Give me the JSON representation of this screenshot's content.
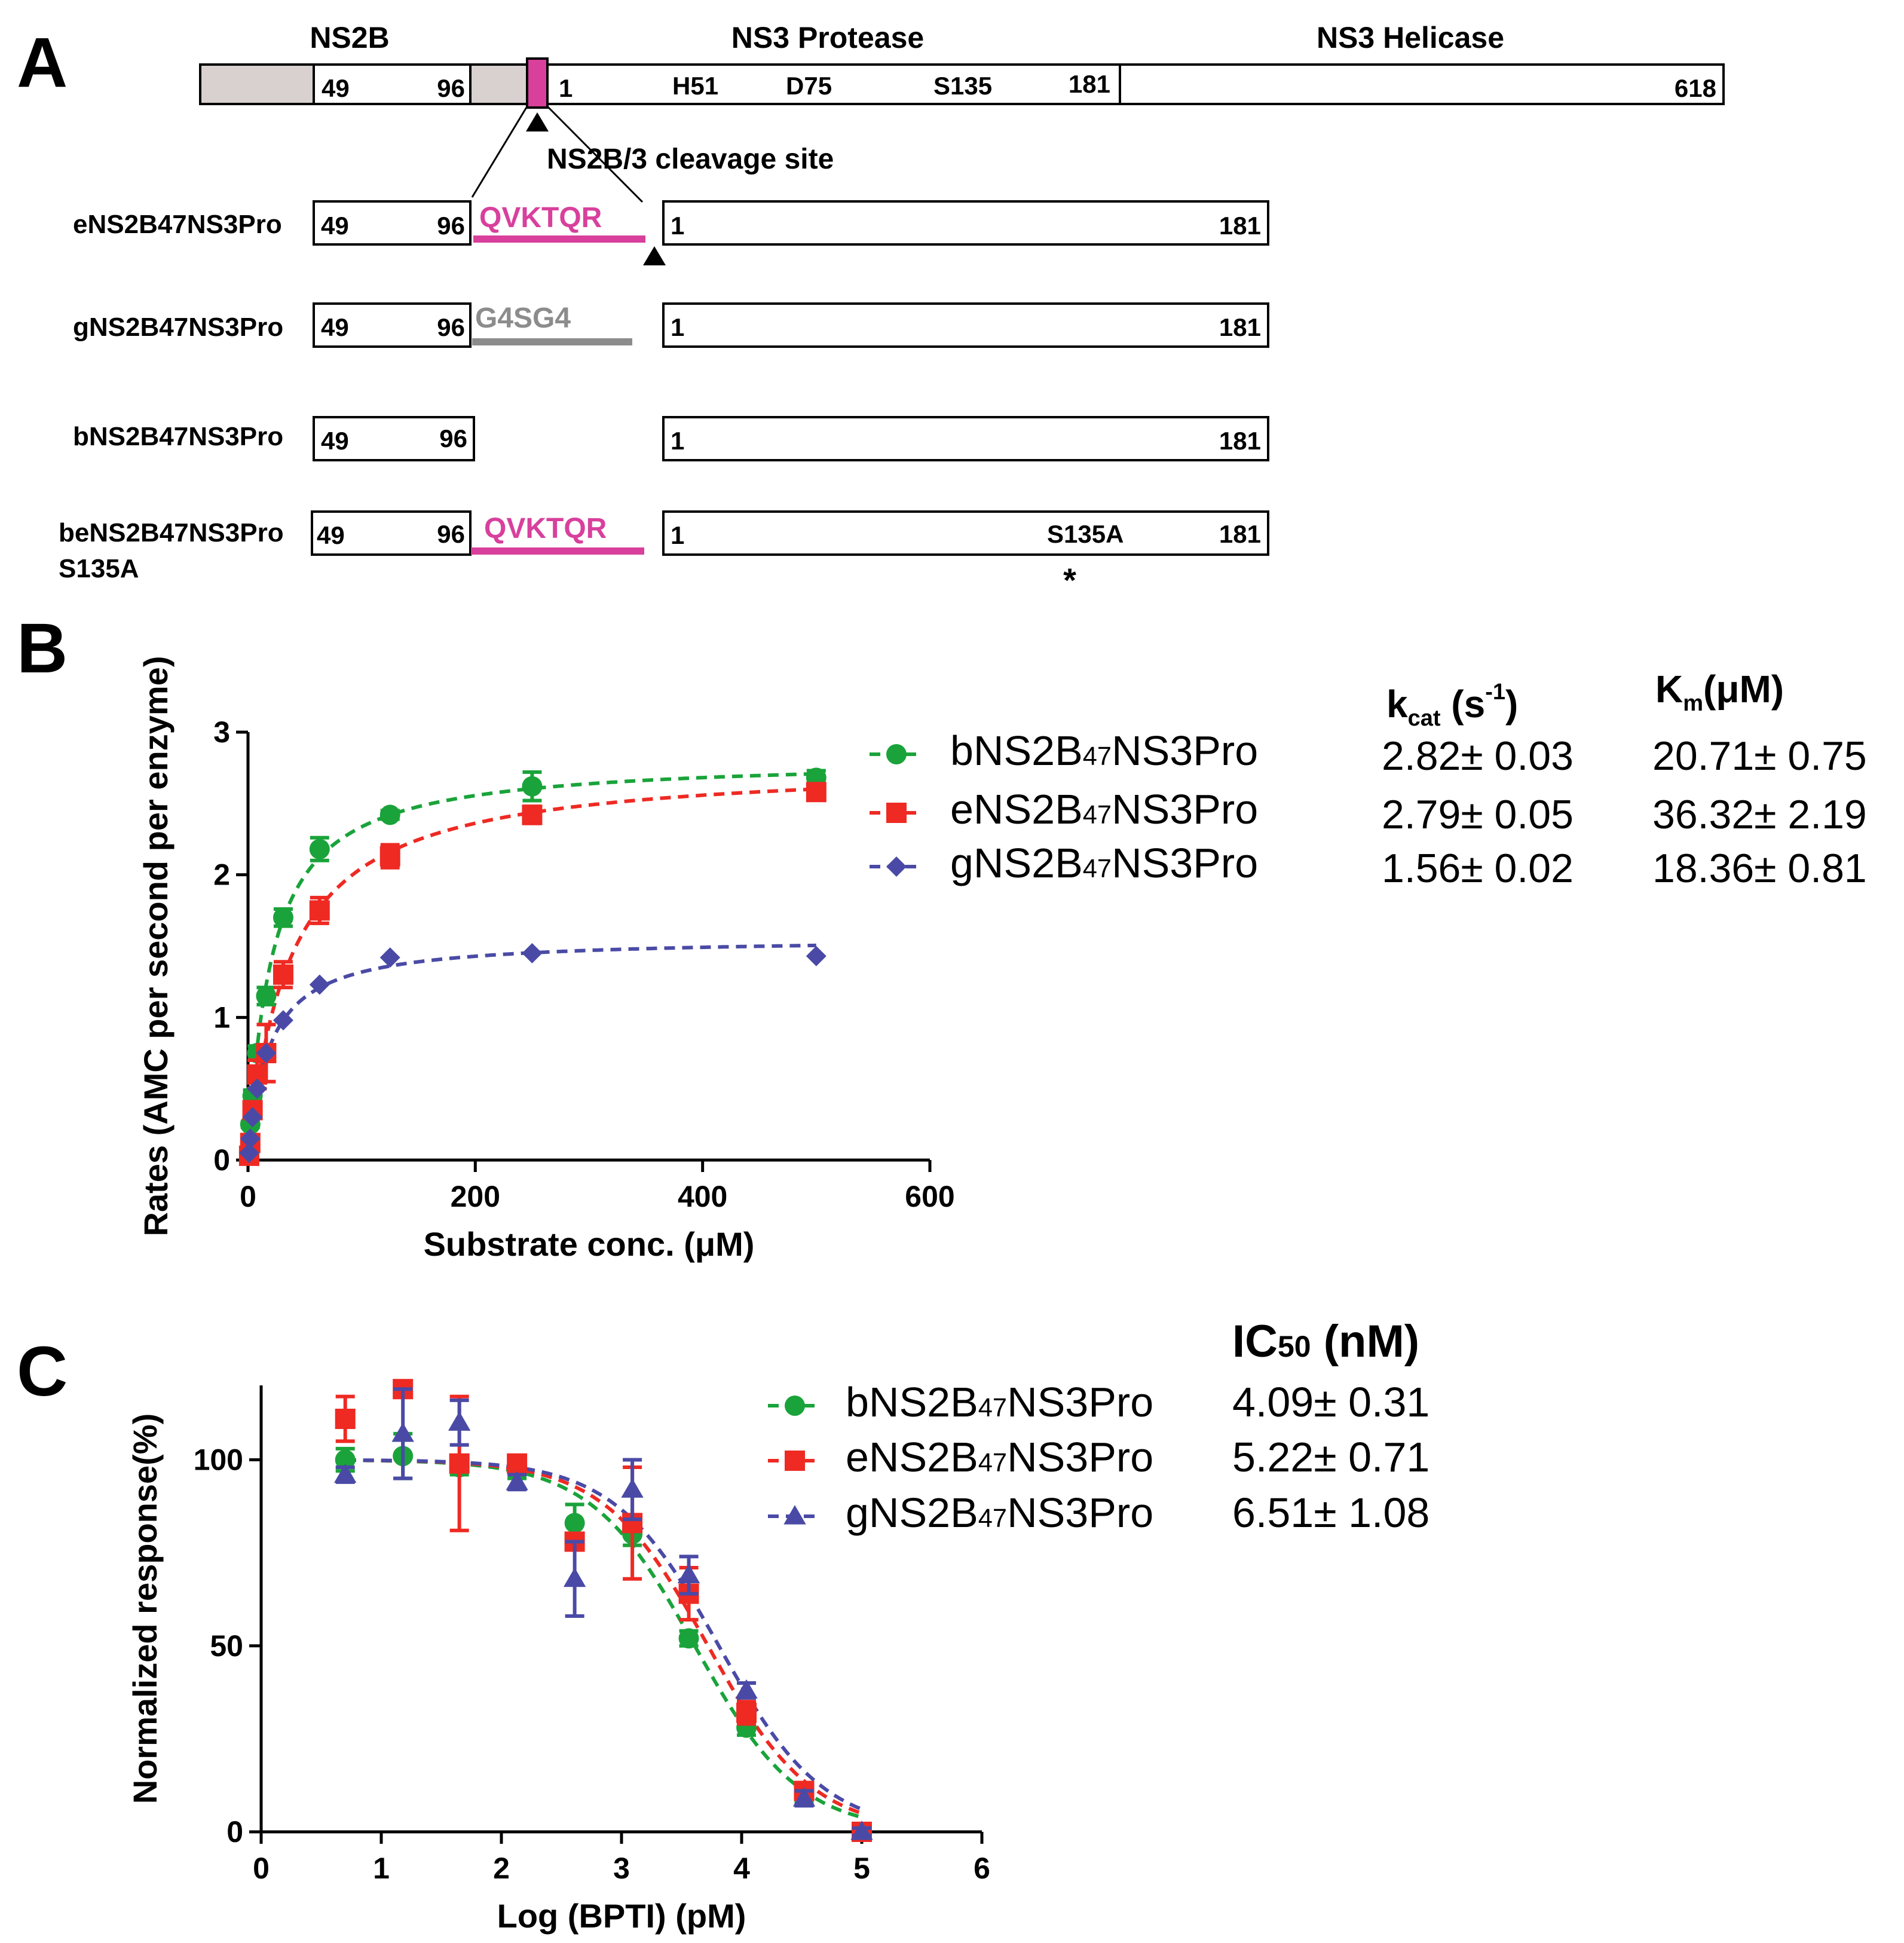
{
  "panel_letters": {
    "a": "A",
    "b": "B",
    "c": "C"
  },
  "colors": {
    "green": "#1aa33a",
    "red": "#ee2a23",
    "blue": "#4a4aa6",
    "magenta": "#d8409c",
    "grey": "#8c8c8c",
    "fill": "#d9d1cf",
    "black": "#000000"
  },
  "panel_a": {
    "headers": {
      "ns2b": "NS2B",
      "protease": "NS3 Protease",
      "helicase": "NS3 Helicase"
    },
    "top_bar": {
      "n49": "49",
      "n96": "96",
      "n1": "1",
      "h51": "H51",
      "d75": "D75",
      "s135": "S135",
      "n181": "181",
      "n618": "618"
    },
    "cleavage_label": "NS2B/3 cleavage site",
    "constructs": [
      {
        "name": "eNS2B47NS3Pro",
        "left_start": "49",
        "left_end": "96",
        "linker": "QVKTQR",
        "right_start": "1",
        "right_end": "181",
        "mutation": ""
      },
      {
        "name": "gNS2B47NS3Pro",
        "left_start": "49",
        "left_end": "96",
        "linker": "G4SG4",
        "right_start": "1",
        "right_end": "181",
        "mutation": ""
      },
      {
        "name": "bNS2B47NS3Pro",
        "left_start": "49",
        "left_end": "96",
        "linker": "",
        "right_start": "1",
        "right_end": "181",
        "mutation": ""
      },
      {
        "name": "beNS2B47NS3Pro",
        "name_line2": "S135A",
        "left_start": "49",
        "left_end": "96",
        "linker": "QVKTQR",
        "right_start": "1",
        "right_end": "181",
        "mutation": "S135A",
        "mutation_mark": "*"
      }
    ]
  },
  "chart_data": [
    {
      "panel": "B",
      "type": "scatter",
      "title": "",
      "xlabel": "Substrate conc. (μM)",
      "ylabel": "Rates (AMC per second per enzyme)",
      "xlim": [
        0,
        600
      ],
      "ylim": [
        0,
        3
      ],
      "xticks": [
        0,
        200,
        400,
        600
      ],
      "yticks": [
        0,
        1,
        2,
        3
      ],
      "legend_position": "right",
      "table_headers": {
        "kcat": "kcat (s-1)",
        "km": "Km (μM)"
      },
      "series": [
        {
          "name": "bNS2B47NS3Pro",
          "marker": "circle",
          "color": "#1aa33a",
          "x": [
            1,
            2,
            4,
            8,
            16,
            31,
            63,
            125,
            250,
            500
          ],
          "y": [
            0.05,
            0.25,
            0.45,
            0.75,
            1.15,
            1.7,
            2.18,
            2.42,
            2.62,
            2.68
          ],
          "err": [
            0.02,
            0.02,
            0.04,
            0.05,
            0.06,
            0.06,
            0.08,
            0.03,
            0.1,
            0.05
          ],
          "kcat": "2.82± 0.03",
          "km": "20.71± 0.75",
          "kcat_fit": 2.82,
          "km_fit": 20.71
        },
        {
          "name": "eNS2B47NS3Pro",
          "marker": "square",
          "color": "#ee2a23",
          "x": [
            1,
            2,
            4,
            8,
            16,
            31,
            63,
            125,
            250,
            500
          ],
          "y": [
            0.03,
            0.12,
            0.35,
            0.6,
            0.75,
            1.3,
            1.75,
            2.13,
            2.42,
            2.58
          ],
          "err": [
            0.02,
            0.03,
            0.05,
            0.1,
            0.2,
            0.09,
            0.09,
            0.08,
            0.06,
            0.05
          ],
          "kcat": "2.79± 0.05",
          "km": "36.32± 2.19",
          "kcat_fit": 2.79,
          "km_fit": 36.32
        },
        {
          "name": "gNS2B47NS3Pro",
          "marker": "diamond",
          "color": "#4a4aa6",
          "x": [
            1,
            2,
            4,
            8,
            16,
            31,
            63,
            125,
            250,
            500
          ],
          "y": [
            0.05,
            0.15,
            0.3,
            0.5,
            0.75,
            0.98,
            1.23,
            1.42,
            1.45,
            1.43
          ],
          "err": [
            0,
            0,
            0,
            0,
            0,
            0,
            0,
            0,
            0,
            0
          ],
          "kcat": "1.56± 0.02",
          "km": "18.36± 0.81",
          "kcat_fit": 1.56,
          "km_fit": 18.36
        }
      ]
    },
    {
      "panel": "C",
      "type": "scatter",
      "title": "",
      "xlabel": "Log (BPTI) (pM)",
      "ylabel": "Normalized response(%)",
      "xlim": [
        0,
        6
      ],
      "ylim": [
        0,
        120
      ],
      "xticks": [
        0,
        1,
        2,
        3,
        4,
        5,
        6
      ],
      "yticks": [
        0,
        50,
        100
      ],
      "legend_position": "right",
      "table_headers": {
        "ic50": "IC50 (nM)"
      },
      "series": [
        {
          "name": "bNS2B47NS3Pro",
          "marker": "circle",
          "color": "#1aa33a",
          "x": [
            0.7,
            1.18,
            1.65,
            2.13,
            2.61,
            3.09,
            3.56,
            4.04,
            4.52,
            5.0
          ],
          "y": [
            100,
            101,
            98,
            97,
            83,
            80,
            52,
            28,
            10,
            0
          ],
          "err": [
            3,
            6,
            2,
            2,
            5,
            3,
            2,
            2,
            2,
            1
          ],
          "ic50": "4.09± 0.31",
          "logic50": 3.61
        },
        {
          "name": "eNS2B47NS3Pro",
          "marker": "square",
          "color": "#ee2a23",
          "x": [
            0.7,
            1.18,
            1.65,
            2.13,
            2.61,
            3.09,
            3.56,
            4.04,
            4.52,
            5.0
          ],
          "y": [
            111,
            119,
            99,
            99,
            78,
            83,
            64,
            32,
            11,
            0
          ],
          "err": [
            6,
            2,
            18,
            2,
            2,
            15,
            7,
            3,
            2,
            1
          ],
          "ic50": "5.22± 0.71",
          "logic50": 3.72
        },
        {
          "name": "gNS2B47NS3Pro",
          "marker": "triangle",
          "color": "#4a4aa6",
          "x": [
            0.7,
            1.18,
            1.65,
            2.13,
            2.61,
            3.09,
            3.56,
            4.04,
            4.52,
            5.0
          ],
          "y": [
            96,
            107,
            110,
            94,
            68,
            92,
            69,
            38,
            9,
            0
          ],
          "err": [
            2,
            12,
            6,
            2,
            10,
            8,
            5,
            2,
            2,
            1
          ],
          "ic50": "6.51± 1.08",
          "logic50": 3.81
        }
      ]
    }
  ]
}
